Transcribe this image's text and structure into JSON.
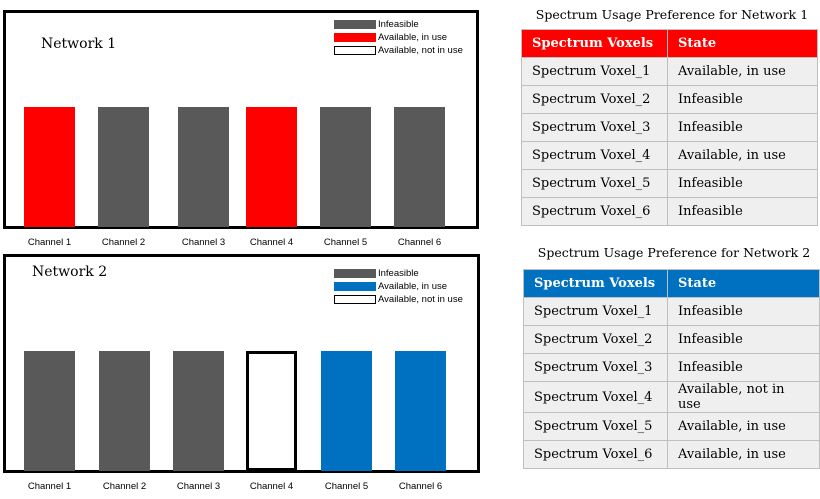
{
  "colors": {
    "infeasible": "#595959",
    "net1_in_use": "#ff0000",
    "net2_in_use": "#0070c0",
    "not_in_use": "#ffffff",
    "net1_header": "#ff0000",
    "net2_header": "#0070c0"
  },
  "network1": {
    "title": "Network 1",
    "legend": [
      "Infeasible",
      "Available, in use",
      "Available, not in use"
    ],
    "channels": [
      {
        "label": "Channel 1",
        "state": "in_use"
      },
      {
        "label": "Channel 2",
        "state": "infeasible"
      },
      {
        "label": "Channel 3",
        "state": "infeasible"
      },
      {
        "label": "Channel 4",
        "state": "in_use"
      },
      {
        "label": "Channel 5",
        "state": "infeasible"
      },
      {
        "label": "Channel 6",
        "state": "infeasible"
      }
    ],
    "table": {
      "title": "Spectrum Usage Preference for Network 1",
      "headers": [
        "Spectrum Voxels",
        "State"
      ],
      "rows": [
        [
          "Spectrum Voxel_1",
          "Available, in use"
        ],
        [
          "Spectrum Voxel_2",
          "Infeasible"
        ],
        [
          "Spectrum Voxel_3",
          "Infeasible"
        ],
        [
          "Spectrum Voxel_4",
          "Available, in use"
        ],
        [
          "Spectrum Voxel_5",
          "Infeasible"
        ],
        [
          "Spectrum Voxel_6",
          "Infeasible"
        ]
      ]
    }
  },
  "network2": {
    "title": "Network 2",
    "legend": [
      "Infeasible",
      "Available, in use",
      "Available, not in use"
    ],
    "channels": [
      {
        "label": "Channel 1",
        "state": "infeasible"
      },
      {
        "label": "Channel 2",
        "state": "infeasible"
      },
      {
        "label": "Channel 3",
        "state": "infeasible"
      },
      {
        "label": "Channel 4",
        "state": "not_in_use"
      },
      {
        "label": "Channel 5",
        "state": "in_use"
      },
      {
        "label": "Channel 6",
        "state": "in_use"
      }
    ],
    "table": {
      "title": "Spectrum Usage Preference for Network 2",
      "headers": [
        "Spectrum Voxels",
        "State"
      ],
      "rows": [
        [
          "Spectrum Voxel_1",
          "Infeasible"
        ],
        [
          "Spectrum Voxel_2",
          "Infeasible"
        ],
        [
          "Spectrum Voxel_3",
          "Infeasible"
        ],
        [
          "Spectrum Voxel_4",
          "Available, not in use"
        ],
        [
          "Spectrum Voxel_5",
          "Available, in use"
        ],
        [
          "Spectrum Voxel_6",
          "Available, in use"
        ]
      ]
    }
  }
}
